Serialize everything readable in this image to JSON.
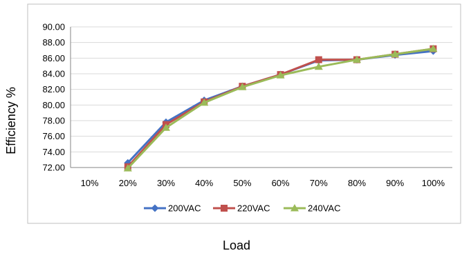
{
  "chart_data": {
    "type": "line",
    "title": "",
    "xlabel": "Load",
    "ylabel": "Efficiency %",
    "categories": [
      "10%",
      "20%",
      "30%",
      "40%",
      "50%",
      "60%",
      "70%",
      "80%",
      "90%",
      "100%"
    ],
    "y_ticks": [
      "72.00",
      "74.00",
      "76.00",
      "78.00",
      "80.00",
      "82.00",
      "84.00",
      "86.00",
      "88.00",
      "90.00"
    ],
    "ylim": [
      72,
      90
    ],
    "grid": "horizontal",
    "legend_position": "bottom",
    "series": [
      {
        "name": "200VAC",
        "color": "#4472C4",
        "marker": "diamond",
        "values": [
          null,
          72.6,
          77.8,
          80.6,
          82.4,
          83.9,
          85.7,
          85.8,
          86.4,
          86.9
        ]
      },
      {
        "name": "220VAC",
        "color": "#C0504D",
        "marker": "square",
        "values": [
          null,
          72.1,
          77.5,
          80.4,
          82.4,
          83.9,
          85.8,
          85.8,
          86.5,
          87.2
        ]
      },
      {
        "name": "240VAC",
        "color": "#9BBB59",
        "marker": "triangle",
        "values": [
          null,
          71.9,
          77.1,
          80.3,
          82.3,
          83.8,
          84.9,
          85.8,
          86.5,
          87.2
        ]
      }
    ]
  }
}
